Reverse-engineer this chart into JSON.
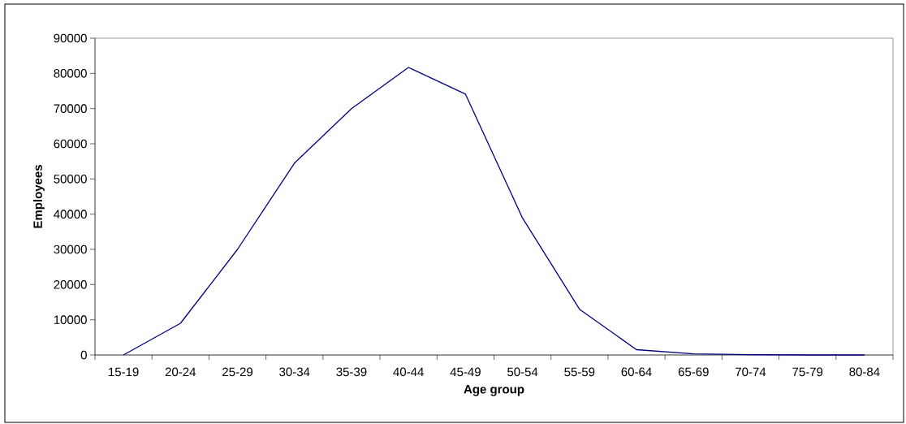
{
  "chart_data": {
    "type": "line",
    "xlabel": "Age group",
    "ylabel": "Employees",
    "categories": [
      "15-19",
      "20-24",
      "25-29",
      "30-34",
      "35-39",
      "40-44",
      "45-49",
      "50-54",
      "55-59",
      "60-64",
      "65-69",
      "70-74",
      "75-79",
      "80-84"
    ],
    "values": [
      0,
      9000,
      30000,
      54500,
      70000,
      81700,
      74100,
      38900,
      13000,
      1500,
      300,
      100,
      0,
      0
    ],
    "color": "#000080",
    "ylim": [
      0,
      90000
    ],
    "yticks": [
      0,
      10000,
      20000,
      30000,
      40000,
      50000,
      60000,
      70000,
      80000,
      90000
    ]
  }
}
